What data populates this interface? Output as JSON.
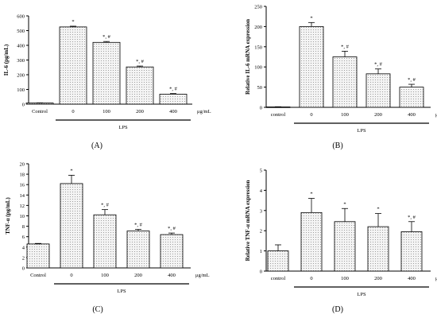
{
  "colors": {
    "bar_fill": "#f4f4f4",
    "bar_dot": "#8a8a8a",
    "bar_stroke": "#000000",
    "axis": "#000000"
  },
  "chart_data": [
    {
      "panel": "A",
      "type": "bar",
      "panel_label": "(A)",
      "ylabel": "IL-6 (pg/mL)",
      "ylim": [
        0,
        600
      ],
      "yticks": [
        0,
        100,
        200,
        300,
        400,
        500,
        600
      ],
      "categories": [
        "Control",
        "0",
        "100",
        "200",
        "400"
      ],
      "values": [
        8,
        525,
        420,
        253,
        68
      ],
      "errors": [
        1,
        5,
        6,
        6,
        4
      ],
      "annotations": [
        "",
        "*",
        "*, #",
        "*, #",
        "*, #"
      ],
      "unit_label": "μg/mL",
      "group_label": "LPS"
    },
    {
      "panel": "B",
      "type": "bar",
      "panel_label": "(B)",
      "ylabel": "Relative IL-6 mRNA expression",
      "ylim": [
        0,
        250
      ],
      "yticks": [
        0,
        50,
        100,
        150,
        200,
        250
      ],
      "categories": [
        "control",
        "0",
        "100",
        "200",
        "400"
      ],
      "values": [
        1,
        200,
        125,
        83,
        50
      ],
      "errors": [
        0.5,
        10,
        14,
        12,
        7
      ],
      "annotations": [
        "",
        "*",
        "*, #",
        "*, #",
        "*, #"
      ],
      "unit_label": "μg/mL",
      "group_label": "LPS"
    },
    {
      "panel": "C",
      "type": "bar",
      "panel_label": "(C)",
      "ylabel": "TNF-α (pg/mL)",
      "ylim": [
        0,
        20
      ],
      "yticks": [
        0,
        2,
        4,
        6,
        8,
        10,
        12,
        14,
        16,
        18,
        20
      ],
      "categories": [
        "Control",
        "0",
        "100",
        "200",
        "400"
      ],
      "values": [
        4.6,
        16.2,
        10.2,
        7.1,
        6.4
      ],
      "errors": [
        0.1,
        1.6,
        1.0,
        0.3,
        0.3
      ],
      "annotations": [
        "",
        "*",
        "*, #",
        "*, #",
        "*, #"
      ],
      "unit_label": "μg/mL",
      "group_label": "LPS"
    },
    {
      "panel": "D",
      "type": "bar",
      "panel_label": "(D)",
      "ylabel": "Relative TNF-α mRNA expression",
      "ylim": [
        0,
        5
      ],
      "yticks": [
        0,
        1,
        2,
        3,
        4,
        5
      ],
      "categories": [
        "control",
        "0",
        "100",
        "200",
        "400"
      ],
      "values": [
        1.0,
        2.9,
        2.45,
        2.2,
        1.95
      ],
      "errors": [
        0.3,
        0.7,
        0.65,
        0.65,
        0.5
      ],
      "annotations": [
        "",
        "*",
        "*",
        "*",
        "*, #"
      ],
      "unit_label": "μg/mL",
      "group_label": "LPS"
    }
  ]
}
